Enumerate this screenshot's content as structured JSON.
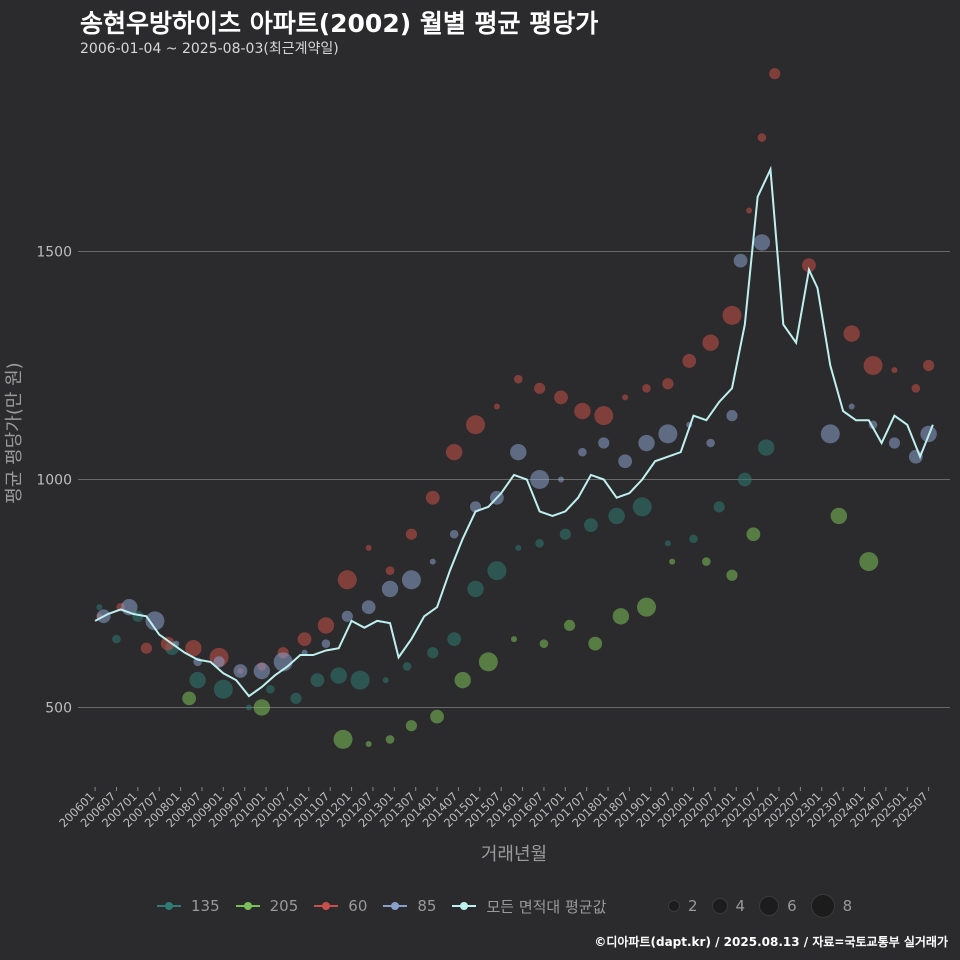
{
  "title": "송현우방하이츠 아파트(2002) 월별 평균 평당가",
  "subtitle": "2006-01-04 ~ 2025-08-03(최근계약일)",
  "credit": "©디아파트(dapt.kr) / 2025.08.13 / 자료=국토교통부 실거래가",
  "chart_data": {
    "type": "scatter",
    "xlabel": "거래년월",
    "ylabel": "평균 평당가(만 원)",
    "yticks": [
      500,
      1000,
      1500
    ],
    "ylim": [
      330,
      1920
    ],
    "grid": "horizontal",
    "legend_position": "bottom",
    "x_tick_labels": [
      "200601",
      "200607",
      "200701",
      "200707",
      "200801",
      "200807",
      "200901",
      "200907",
      "201001",
      "201007",
      "201101",
      "201107",
      "201201",
      "201207",
      "201301",
      "201307",
      "201401",
      "201407",
      "201501",
      "201507",
      "201601",
      "201607",
      "201701",
      "201707",
      "201801",
      "201807",
      "201901",
      "201907",
      "202001",
      "202007",
      "202101",
      "202107",
      "202201",
      "202207",
      "202301",
      "202307",
      "202401",
      "202407",
      "202501",
      "202507"
    ],
    "series": [
      {
        "name": "135",
        "color": "#2f7a74",
        "points": [
          [
            2006.1,
            720
          ],
          [
            2006.5,
            650
          ],
          [
            2007.0,
            700
          ],
          [
            2007.8,
            630
          ],
          [
            2008.4,
            560
          ],
          [
            2009.0,
            540
          ],
          [
            2009.6,
            500
          ],
          [
            2010.1,
            540
          ],
          [
            2010.7,
            520
          ],
          [
            2011.2,
            560
          ],
          [
            2011.7,
            570
          ],
          [
            2012.2,
            560
          ],
          [
            2012.8,
            560
          ],
          [
            2013.3,
            590
          ],
          [
            2013.9,
            620
          ],
          [
            2014.4,
            650
          ],
          [
            2014.9,
            760
          ],
          [
            2015.4,
            800
          ],
          [
            2015.9,
            850
          ],
          [
            2016.4,
            860
          ],
          [
            2017.0,
            880
          ],
          [
            2017.6,
            900
          ],
          [
            2018.2,
            920
          ],
          [
            2018.8,
            940
          ],
          [
            2019.4,
            860
          ],
          [
            2020.0,
            870
          ],
          [
            2020.6,
            940
          ],
          [
            2021.2,
            1000
          ],
          [
            2021.7,
            1070
          ]
        ]
      },
      {
        "name": "205",
        "color": "#7bbf5a",
        "points": [
          [
            2008.2,
            520
          ],
          [
            2009.9,
            500
          ],
          [
            2011.8,
            430
          ],
          [
            2012.4,
            420
          ],
          [
            2012.9,
            430
          ],
          [
            2013.4,
            460
          ],
          [
            2014.0,
            480
          ],
          [
            2014.6,
            560
          ],
          [
            2015.2,
            600
          ],
          [
            2015.8,
            650
          ],
          [
            2016.5,
            640
          ],
          [
            2017.1,
            680
          ],
          [
            2017.7,
            640
          ],
          [
            2018.3,
            700
          ],
          [
            2018.9,
            720
          ],
          [
            2019.5,
            820
          ],
          [
            2020.3,
            820
          ],
          [
            2020.9,
            790
          ],
          [
            2021.4,
            880
          ],
          [
            2023.4,
            920
          ],
          [
            2024.1,
            820
          ]
        ]
      },
      {
        "name": "60",
        "color": "#c8504a",
        "points": [
          [
            2006.1,
            700
          ],
          [
            2006.6,
            720
          ],
          [
            2007.2,
            630
          ],
          [
            2007.7,
            640
          ],
          [
            2008.3,
            630
          ],
          [
            2008.9,
            610
          ],
          [
            2009.4,
            580
          ],
          [
            2009.9,
            590
          ],
          [
            2010.4,
            620
          ],
          [
            2010.9,
            650
          ],
          [
            2011.4,
            680
          ],
          [
            2011.9,
            780
          ],
          [
            2012.4,
            850
          ],
          [
            2012.9,
            800
          ],
          [
            2013.4,
            880
          ],
          [
            2013.9,
            960
          ],
          [
            2014.4,
            1060
          ],
          [
            2014.9,
            1120
          ],
          [
            2015.4,
            1160
          ],
          [
            2015.9,
            1220
          ],
          [
            2016.4,
            1200
          ],
          [
            2016.9,
            1180
          ],
          [
            2017.4,
            1150
          ],
          [
            2017.9,
            1140
          ],
          [
            2018.4,
            1180
          ],
          [
            2018.9,
            1200
          ],
          [
            2019.4,
            1210
          ],
          [
            2019.9,
            1260
          ],
          [
            2020.4,
            1300
          ],
          [
            2020.9,
            1360
          ],
          [
            2021.3,
            1590
          ],
          [
            2021.6,
            1750
          ],
          [
            2021.9,
            1890
          ],
          [
            2022.7,
            1470
          ],
          [
            2023.7,
            1320
          ],
          [
            2024.2,
            1250
          ],
          [
            2024.7,
            1240
          ],
          [
            2025.2,
            1200
          ],
          [
            2025.5,
            1250
          ]
        ]
      },
      {
        "name": "85",
        "color": "#8aa0cc",
        "points": [
          [
            2006.2,
            700
          ],
          [
            2006.8,
            720
          ],
          [
            2007.4,
            690
          ],
          [
            2007.9,
            640
          ],
          [
            2008.4,
            600
          ],
          [
            2008.9,
            600
          ],
          [
            2009.4,
            580
          ],
          [
            2009.9,
            580
          ],
          [
            2010.4,
            600
          ],
          [
            2010.9,
            620
          ],
          [
            2011.4,
            640
          ],
          [
            2011.9,
            700
          ],
          [
            2012.4,
            720
          ],
          [
            2012.9,
            760
          ],
          [
            2013.4,
            780
          ],
          [
            2013.9,
            820
          ],
          [
            2014.4,
            880
          ],
          [
            2014.9,
            940
          ],
          [
            2015.4,
            960
          ],
          [
            2015.9,
            1060
          ],
          [
            2016.4,
            1000
          ],
          [
            2016.9,
            1000
          ],
          [
            2017.4,
            1060
          ],
          [
            2017.9,
            1080
          ],
          [
            2018.4,
            1040
          ],
          [
            2018.9,
            1080
          ],
          [
            2019.4,
            1100
          ],
          [
            2019.9,
            1120
          ],
          [
            2020.4,
            1080
          ],
          [
            2020.9,
            1140
          ],
          [
            2021.1,
            1480
          ],
          [
            2021.6,
            1520
          ],
          [
            2023.2,
            1100
          ],
          [
            2023.7,
            1160
          ],
          [
            2024.2,
            1120
          ],
          [
            2024.7,
            1080
          ],
          [
            2025.2,
            1050
          ],
          [
            2025.5,
            1100
          ]
        ]
      },
      {
        "name": "모든 면적대 평균값",
        "color": "#bff0f0",
        "line": true,
        "points": [
          [
            2006.0,
            690
          ],
          [
            2006.3,
            705
          ],
          [
            2006.6,
            715
          ],
          [
            2006.9,
            705
          ],
          [
            2007.2,
            700
          ],
          [
            2007.5,
            660
          ],
          [
            2007.8,
            640
          ],
          [
            2008.1,
            620
          ],
          [
            2008.4,
            605
          ],
          [
            2008.7,
            600
          ],
          [
            2009.0,
            575
          ],
          [
            2009.3,
            560
          ],
          [
            2009.6,
            525
          ],
          [
            2009.9,
            545
          ],
          [
            2010.2,
            570
          ],
          [
            2010.5,
            590
          ],
          [
            2010.8,
            615
          ],
          [
            2011.1,
            615
          ],
          [
            2011.4,
            625
          ],
          [
            2011.7,
            630
          ],
          [
            2012.0,
            690
          ],
          [
            2012.3,
            675
          ],
          [
            2012.6,
            690
          ],
          [
            2012.9,
            685
          ],
          [
            2013.1,
            610
          ],
          [
            2013.4,
            650
          ],
          [
            2013.7,
            700
          ],
          [
            2014.0,
            720
          ],
          [
            2014.3,
            800
          ],
          [
            2014.6,
            870
          ],
          [
            2014.9,
            930
          ],
          [
            2015.2,
            940
          ],
          [
            2015.5,
            970
          ],
          [
            2015.8,
            1010
          ],
          [
            2016.1,
            1000
          ],
          [
            2016.4,
            930
          ],
          [
            2016.7,
            920
          ],
          [
            2017.0,
            930
          ],
          [
            2017.3,
            960
          ],
          [
            2017.6,
            1010
          ],
          [
            2017.9,
            1000
          ],
          [
            2018.2,
            960
          ],
          [
            2018.5,
            970
          ],
          [
            2018.8,
            1000
          ],
          [
            2019.1,
            1040
          ],
          [
            2019.4,
            1050
          ],
          [
            2019.7,
            1060
          ],
          [
            2020.0,
            1140
          ],
          [
            2020.3,
            1130
          ],
          [
            2020.6,
            1170
          ],
          [
            2020.9,
            1200
          ],
          [
            2021.2,
            1340
          ],
          [
            2021.5,
            1620
          ],
          [
            2021.8,
            1680
          ],
          [
            2022.1,
            1340
          ],
          [
            2022.4,
            1300
          ],
          [
            2022.7,
            1460
          ],
          [
            2022.9,
            1420
          ],
          [
            2023.2,
            1250
          ],
          [
            2023.5,
            1150
          ],
          [
            2023.8,
            1130
          ],
          [
            2024.1,
            1130
          ],
          [
            2024.4,
            1080
          ],
          [
            2024.7,
            1140
          ],
          [
            2025.0,
            1120
          ],
          [
            2025.3,
            1050
          ],
          [
            2025.6,
            1120
          ]
        ]
      }
    ],
    "size_legend": [
      2,
      4,
      6,
      8
    ]
  }
}
